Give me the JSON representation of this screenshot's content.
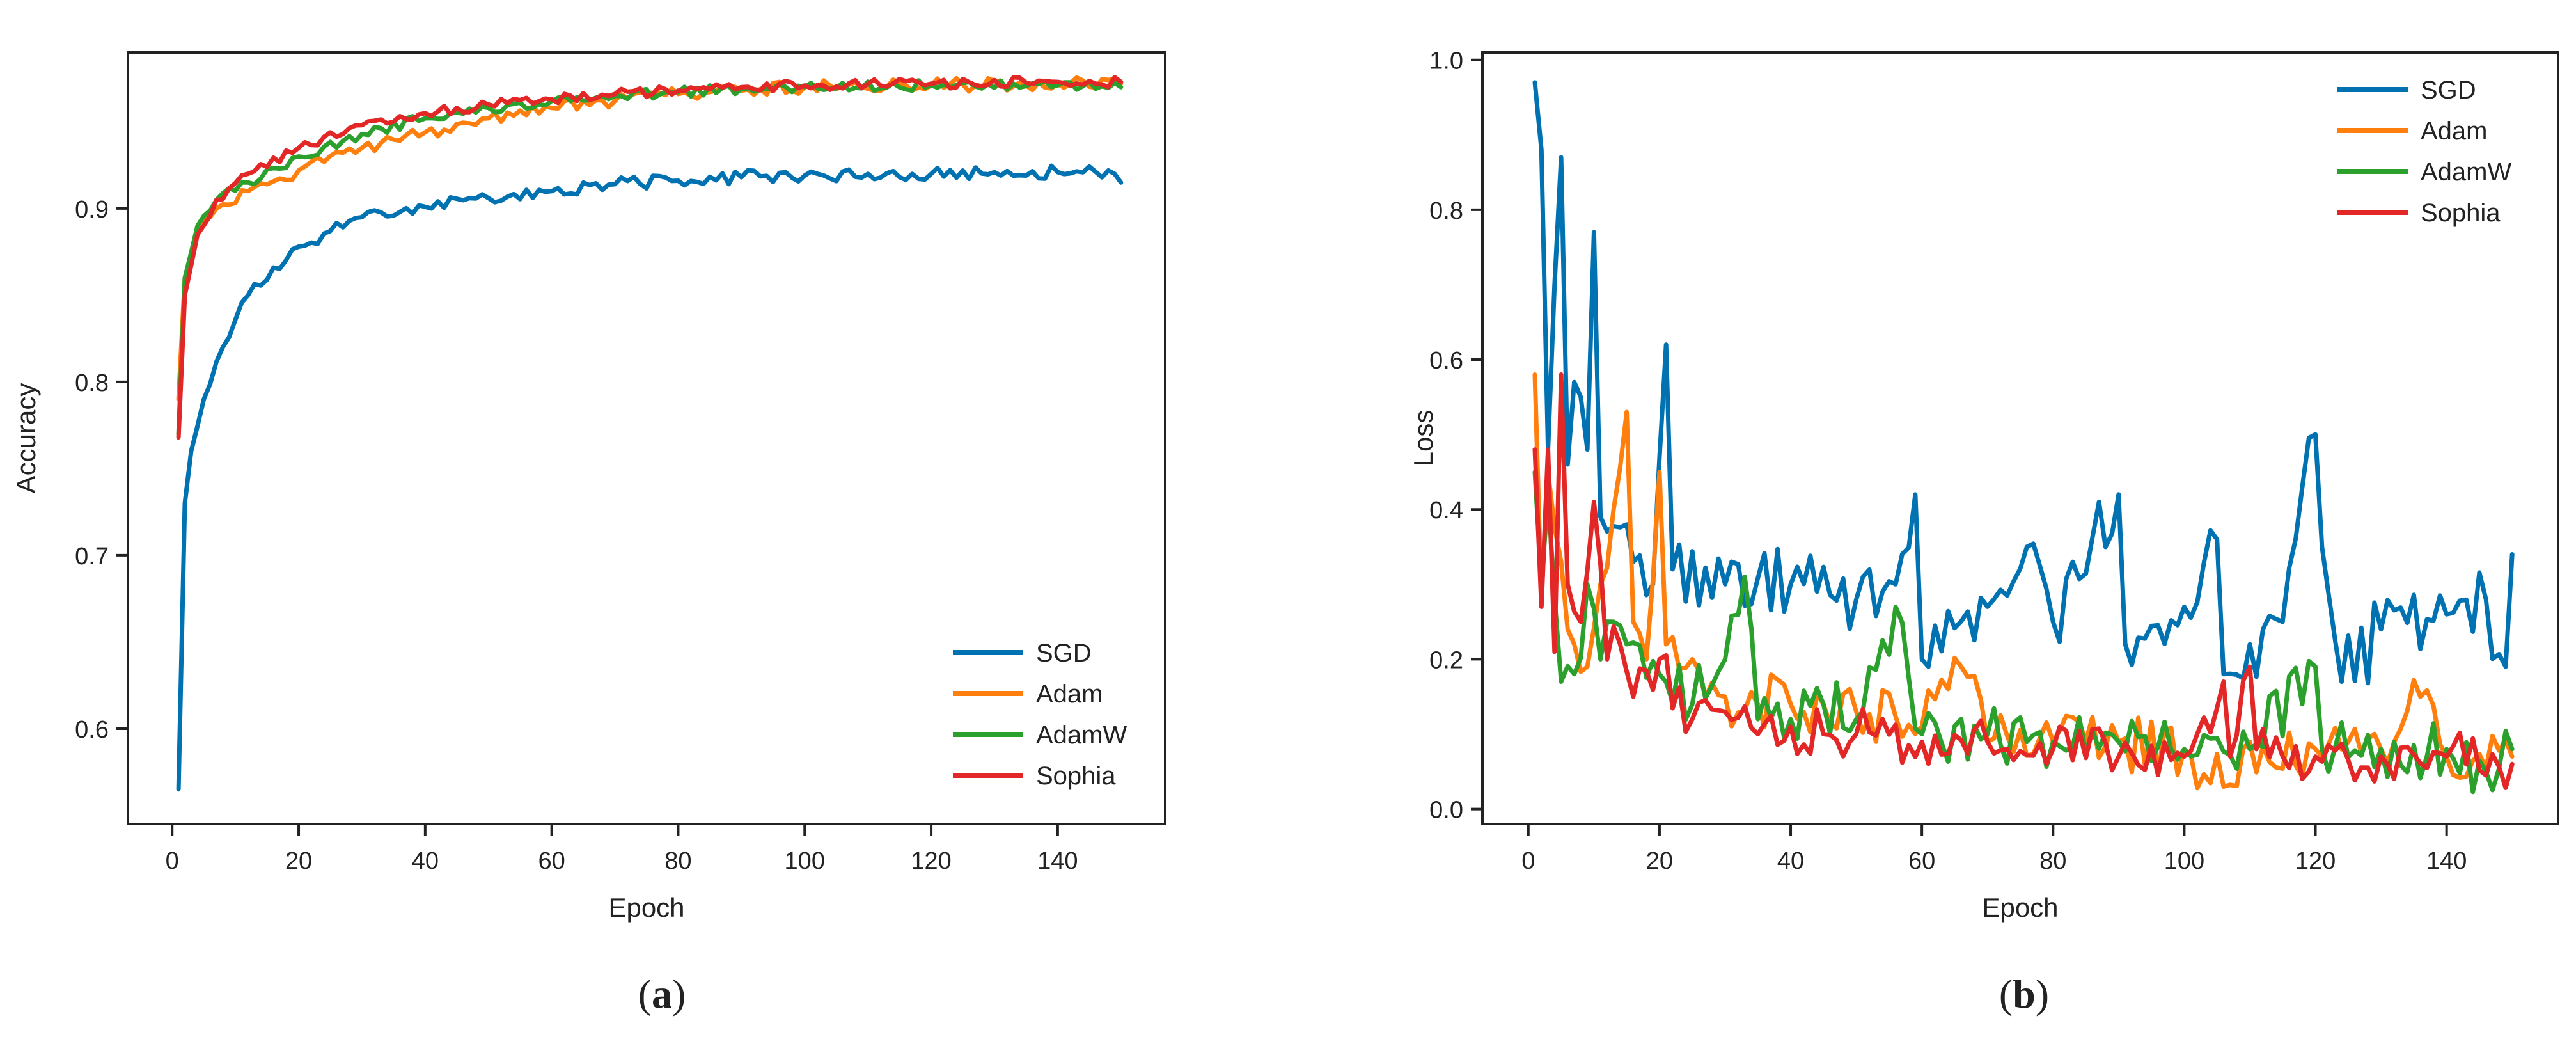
{
  "figure": {
    "panels": [
      {
        "label_open": "(",
        "label_letter": "a",
        "label_close": ")"
      },
      {
        "label_open": "(",
        "label_letter": "b",
        "label_close": ")"
      }
    ]
  },
  "chart_data": [
    {
      "type": "line",
      "title": "",
      "xlabel": "Epoch",
      "ylabel": "Accuracy",
      "xlim": [
        -7,
        157
      ],
      "ylim": [
        0.545,
        0.99
      ],
      "xticks": [
        0,
        20,
        40,
        60,
        80,
        100,
        120,
        140
      ],
      "xtick_labels": [
        "0",
        "20",
        "40",
        "60",
        "80",
        "100",
        "120",
        "140"
      ],
      "yticks": [
        0.6,
        0.7,
        0.8,
        0.9
      ],
      "ytick_labels": [
        "0.6",
        "0.7",
        "0.8",
        "0.9"
      ],
      "grid": false,
      "legend_position": "lower-right",
      "x_start": 1,
      "x_end": 150,
      "series": [
        {
          "name": "SGD",
          "color": "#0072B2",
          "anchors": [
            [
              1,
              0.565
            ],
            [
              2,
              0.73
            ],
            [
              3,
              0.76
            ],
            [
              5,
              0.79
            ],
            [
              8,
              0.82
            ],
            [
              12,
              0.85
            ],
            [
              16,
              0.866
            ],
            [
              20,
              0.878
            ],
            [
              25,
              0.887
            ],
            [
              30,
              0.895
            ],
            [
              40,
              0.901
            ],
            [
              50,
              0.906
            ],
            [
              60,
              0.91
            ],
            [
              70,
              0.914
            ],
            [
              80,
              0.916
            ],
            [
              90,
              0.918
            ],
            [
              100,
              0.919
            ],
            [
              110,
              0.92
            ],
            [
              120,
              0.92
            ],
            [
              130,
              0.921
            ],
            [
              140,
              0.921
            ],
            [
              149,
              0.92
            ],
            [
              150,
              0.915
            ]
          ],
          "noise": 0.004
        },
        {
          "name": "Adam",
          "color": "#FF7F0E",
          "anchors": [
            [
              1,
              0.79
            ],
            [
              2,
              0.86
            ],
            [
              4,
              0.885
            ],
            [
              7,
              0.9
            ],
            [
              12,
              0.91
            ],
            [
              20,
              0.922
            ],
            [
              30,
              0.935
            ],
            [
              40,
              0.944
            ],
            [
              50,
              0.952
            ],
            [
              60,
              0.958
            ],
            [
              70,
              0.962
            ],
            [
              80,
              0.966
            ],
            [
              90,
              0.968
            ],
            [
              100,
              0.97
            ],
            [
              120,
              0.971
            ],
            [
              140,
              0.972
            ],
            [
              150,
              0.972
            ]
          ],
          "noise": 0.004
        },
        {
          "name": "AdamW",
          "color": "#2CA02C",
          "anchors": [
            [
              1,
              0.77
            ],
            [
              2,
              0.86
            ],
            [
              4,
              0.89
            ],
            [
              7,
              0.905
            ],
            [
              12,
              0.915
            ],
            [
              20,
              0.93
            ],
            [
              30,
              0.943
            ],
            [
              40,
              0.952
            ],
            [
              50,
              0.958
            ],
            [
              60,
              0.962
            ],
            [
              70,
              0.965
            ],
            [
              80,
              0.967
            ],
            [
              90,
              0.969
            ],
            [
              100,
              0.97
            ],
            [
              120,
              0.971
            ],
            [
              140,
              0.971
            ],
            [
              150,
              0.97
            ]
          ],
          "noise": 0.003
        },
        {
          "name": "Sophia",
          "color": "#E32626",
          "anchors": [
            [
              1,
              0.768
            ],
            [
              2,
              0.85
            ],
            [
              4,
              0.885
            ],
            [
              7,
              0.905
            ],
            [
              12,
              0.92
            ],
            [
              20,
              0.935
            ],
            [
              30,
              0.948
            ],
            [
              40,
              0.955
            ],
            [
              50,
              0.96
            ],
            [
              60,
              0.963
            ],
            [
              70,
              0.966
            ],
            [
              80,
              0.968
            ],
            [
              90,
              0.97
            ],
            [
              100,
              0.971
            ],
            [
              120,
              0.972
            ],
            [
              140,
              0.973
            ],
            [
              150,
              0.973
            ]
          ],
          "noise": 0.003
        }
      ]
    },
    {
      "type": "line",
      "title": "",
      "xlabel": "Epoch",
      "ylabel": "Loss",
      "xlim": [
        -7,
        157
      ],
      "ylim": [
        -0.02,
        1.01
      ],
      "xticks": [
        0,
        20,
        40,
        60,
        80,
        100,
        120,
        140
      ],
      "xtick_labels": [
        "0",
        "20",
        "40",
        "60",
        "80",
        "100",
        "120",
        "140"
      ],
      "yticks": [
        0.0,
        0.2,
        0.4,
        0.6,
        0.8,
        1.0
      ],
      "ytick_labels": [
        "0.0",
        "0.2",
        "0.4",
        "0.6",
        "0.8",
        "1.0"
      ],
      "grid": false,
      "legend_position": "upper-right",
      "x_start": 1,
      "x_end": 150,
      "series": [
        {
          "name": "SGD",
          "color": "#0072B2",
          "anchors": [
            [
              1,
              0.97
            ],
            [
              2,
              0.88
            ],
            [
              3,
              0.48
            ],
            [
              4,
              0.7
            ],
            [
              5,
              0.87
            ],
            [
              6,
              0.46
            ],
            [
              7,
              0.57
            ],
            [
              8,
              0.55
            ],
            [
              9,
              0.48
            ],
            [
              10,
              0.77
            ],
            [
              11,
              0.39
            ],
            [
              15,
              0.38
            ],
            [
              19,
              0.3
            ],
            [
              21,
              0.62
            ],
            [
              22,
              0.32
            ],
            [
              30,
              0.3
            ],
            [
              40,
              0.3
            ],
            [
              50,
              0.28
            ],
            [
              56,
              0.3
            ],
            [
              59,
              0.42
            ],
            [
              60,
              0.2
            ],
            [
              70,
              0.27
            ],
            [
              76,
              0.35
            ],
            [
              80,
              0.25
            ],
            [
              90,
              0.42
            ],
            [
              91,
              0.22
            ],
            [
              100,
              0.27
            ],
            [
              105,
              0.36
            ],
            [
              106,
              0.18
            ],
            [
              110,
              0.22
            ],
            [
              115,
              0.25
            ],
            [
              120,
              0.5
            ],
            [
              121,
              0.35
            ],
            [
              124,
              0.17
            ],
            [
              130,
              0.24
            ],
            [
              140,
              0.26
            ],
            [
              146,
              0.28
            ],
            [
              149,
              0.19
            ],
            [
              150,
              0.34
            ]
          ],
          "noise": 0.05
        },
        {
          "name": "Adam",
          "color": "#FF7F0E",
          "anchors": [
            [
              1,
              0.58
            ],
            [
              2,
              0.28
            ],
            [
              3,
              0.45
            ],
            [
              5,
              0.33
            ],
            [
              7,
              0.22
            ],
            [
              9,
              0.19
            ],
            [
              11,
              0.3
            ],
            [
              13,
              0.4
            ],
            [
              15,
              0.53
            ],
            [
              16,
              0.25
            ],
            [
              18,
              0.2
            ],
            [
              20,
              0.45
            ],
            [
              21,
              0.22
            ],
            [
              25,
              0.2
            ],
            [
              30,
              0.15
            ],
            [
              35,
              0.14
            ],
            [
              40,
              0.14
            ],
            [
              45,
              0.14
            ],
            [
              50,
              0.13
            ],
            [
              60,
              0.11
            ],
            [
              66,
              0.19
            ],
            [
              70,
              0.09
            ],
            [
              80,
              0.09
            ],
            [
              90,
              0.09
            ],
            [
              100,
              0.08
            ],
            [
              106,
              0.03
            ],
            [
              110,
              0.09
            ],
            [
              120,
              0.08
            ],
            [
              130,
              0.08
            ],
            [
              136,
              0.15
            ],
            [
              140,
              0.07
            ],
            [
              150,
              0.07
            ]
          ],
          "noise": 0.04
        },
        {
          "name": "AdamW",
          "color": "#2CA02C",
          "anchors": [
            [
              1,
              0.45
            ],
            [
              2,
              0.3
            ],
            [
              3,
              0.42
            ],
            [
              5,
              0.17
            ],
            [
              7,
              0.18
            ],
            [
              9,
              0.3
            ],
            [
              11,
              0.2
            ],
            [
              13,
              0.25
            ],
            [
              15,
              0.22
            ],
            [
              20,
              0.18
            ],
            [
              25,
              0.14
            ],
            [
              30,
              0.2
            ],
            [
              33,
              0.31
            ],
            [
              35,
              0.12
            ],
            [
              40,
              0.12
            ],
            [
              45,
              0.14
            ],
            [
              50,
              0.12
            ],
            [
              56,
              0.27
            ],
            [
              60,
              0.1
            ],
            [
              70,
              0.1
            ],
            [
              80,
              0.09
            ],
            [
              90,
              0.09
            ],
            [
              100,
              0.08
            ],
            [
              110,
              0.08
            ],
            [
              120,
              0.19
            ],
            [
              121,
              0.08
            ],
            [
              130,
              0.08
            ],
            [
              140,
              0.08
            ],
            [
              146,
              0.05
            ],
            [
              150,
              0.08
            ]
          ],
          "noise": 0.04
        },
        {
          "name": "Sophia",
          "color": "#E32626",
          "anchors": [
            [
              1,
              0.48
            ],
            [
              2,
              0.27
            ],
            [
              3,
              0.48
            ],
            [
              4,
              0.21
            ],
            [
              5,
              0.58
            ],
            [
              6,
              0.3
            ],
            [
              8,
              0.25
            ],
            [
              10,
              0.41
            ],
            [
              12,
              0.2
            ],
            [
              14,
              0.22
            ],
            [
              16,
              0.15
            ],
            [
              20,
              0.2
            ],
            [
              25,
              0.12
            ],
            [
              30,
              0.13
            ],
            [
              35,
              0.1
            ],
            [
              40,
              0.11
            ],
            [
              45,
              0.1
            ],
            [
              50,
              0.1
            ],
            [
              60,
              0.09
            ],
            [
              70,
              0.09
            ],
            [
              80,
              0.08
            ],
            [
              90,
              0.07
            ],
            [
              100,
              0.07
            ],
            [
              106,
              0.17
            ],
            [
              107,
              0.07
            ],
            [
              110,
              0.19
            ],
            [
              111,
              0.08
            ],
            [
              120,
              0.07
            ],
            [
              130,
              0.07
            ],
            [
              140,
              0.07
            ],
            [
              150,
              0.06
            ]
          ],
          "noise": 0.035
        }
      ]
    }
  ]
}
